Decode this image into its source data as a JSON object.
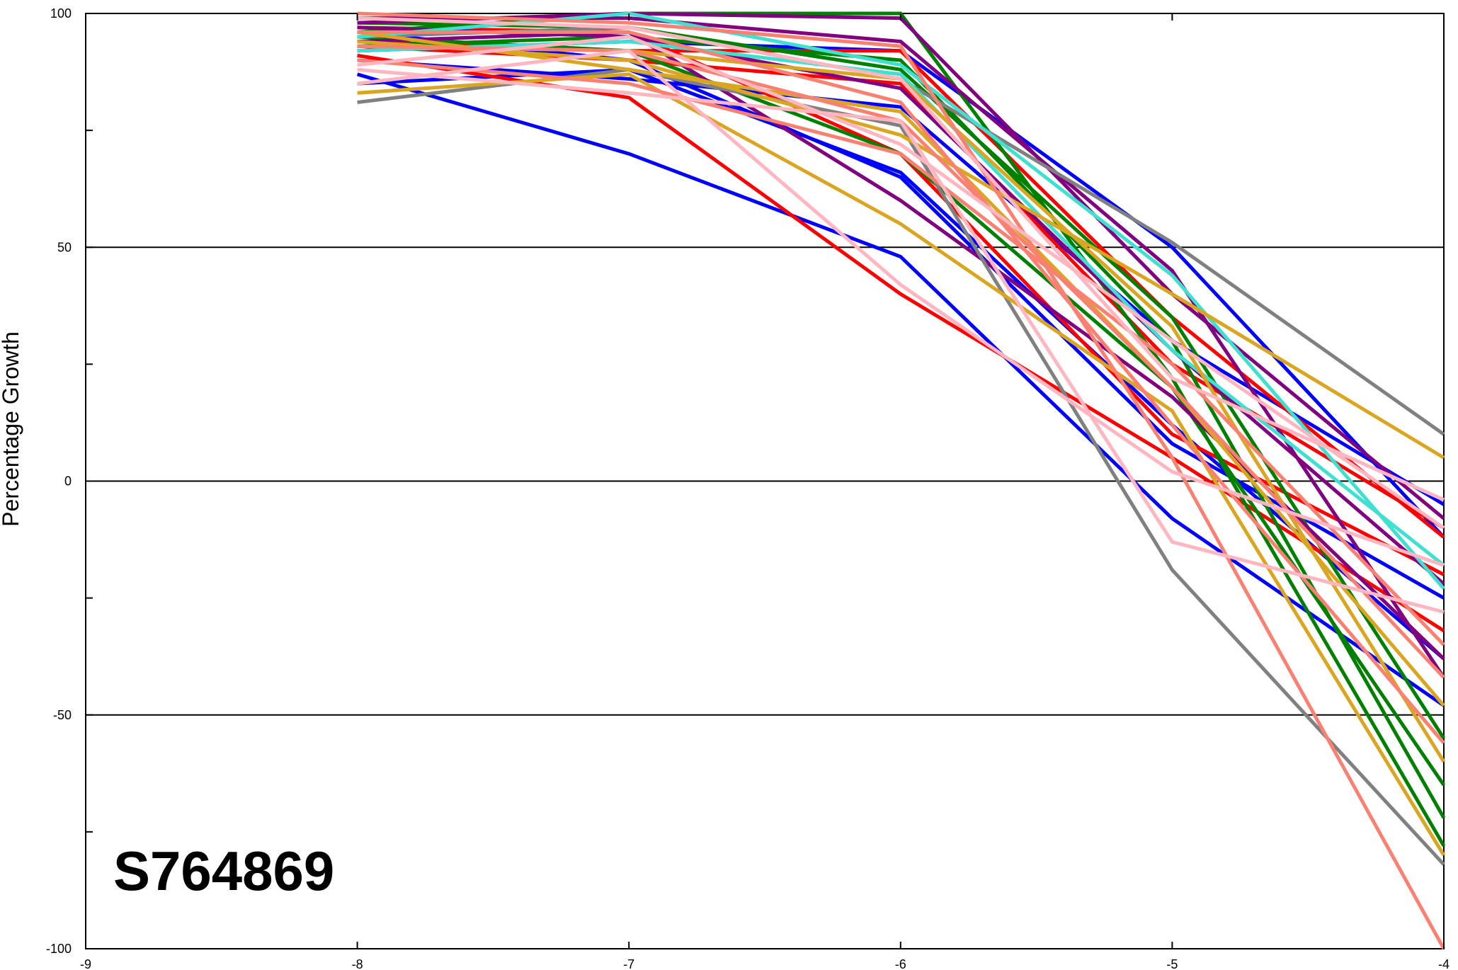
{
  "chart_data": {
    "type": "line",
    "title": "S764869",
    "xlabel": "",
    "ylabel": "Percentage Growth",
    "xlim": [
      -9,
      -4
    ],
    "ylim": [
      -100,
      100
    ],
    "x": [
      -8,
      -7,
      -6,
      -5,
      -4
    ],
    "x_ticks": [
      "-9",
      "-8",
      "-7",
      "-6",
      "-5",
      "-4"
    ],
    "y_ticks": [
      "100",
      "50",
      "0",
      "-50",
      "-100"
    ],
    "grid": "horizontal at 50, 0, -50",
    "legend": "none",
    "series": [
      {
        "color": "#0000ff",
        "values": [
          87,
          70,
          48,
          -8,
          -48
        ]
      },
      {
        "color": "#0000ff",
        "values": [
          85,
          88,
          66,
          12,
          -38
        ]
      },
      {
        "color": "#0000ff",
        "values": [
          92,
          94,
          92,
          50,
          -12
        ]
      },
      {
        "color": "#0000ff",
        "values": [
          96,
          90,
          65,
          8,
          -25
        ]
      },
      {
        "color": "#0000ff",
        "values": [
          90,
          86,
          80,
          30,
          -5
        ]
      },
      {
        "color": "#ff0000",
        "values": [
          91,
          82,
          40,
          5,
          -32
        ]
      },
      {
        "color": "#ff0000",
        "values": [
          94,
          92,
          92,
          35,
          -12
        ]
      },
      {
        "color": "#ff0000",
        "values": [
          97,
          96,
          70,
          10,
          -20
        ]
      },
      {
        "color": "#ff0000",
        "values": [
          93,
          90,
          85,
          25,
          -10
        ]
      },
      {
        "color": "#008000",
        "values": [
          96,
          100,
          100,
          22,
          -78
        ]
      },
      {
        "color": "#008000",
        "values": [
          93,
          95,
          90,
          30,
          -72
        ]
      },
      {
        "color": "#008000",
        "values": [
          95,
          92,
          70,
          20,
          -65
        ]
      },
      {
        "color": "#008000",
        "values": [
          98,
          97,
          88,
          35,
          -55
        ]
      },
      {
        "color": "#800080",
        "values": [
          98,
          100,
          99,
          40,
          -8
        ]
      },
      {
        "color": "#800080",
        "values": [
          97,
          95,
          84,
          28,
          -22
        ]
      },
      {
        "color": "#800080",
        "values": [
          99,
          99,
          94,
          45,
          -42
        ]
      },
      {
        "color": "#800080",
        "values": [
          94,
          96,
          60,
          18,
          -38
        ]
      },
      {
        "color": "#808080",
        "values": [
          81,
          88,
          76,
          -19,
          -82
        ]
      },
      {
        "color": "#808080",
        "values": [
          95,
          97,
          86,
          51,
          10
        ]
      },
      {
        "color": "#40e0d0",
        "values": [
          95,
          100,
          89,
          44,
          -23
        ]
      },
      {
        "color": "#40e0d0",
        "values": [
          92,
          94,
          87,
          28,
          -18
        ]
      },
      {
        "color": "#daa520",
        "values": [
          83,
          87,
          55,
          15,
          -80
        ]
      },
      {
        "color": "#daa520",
        "values": [
          93,
          92,
          86,
          33,
          -60
        ]
      },
      {
        "color": "#daa520",
        "values": [
          94,
          90,
          74,
          40,
          5
        ]
      },
      {
        "color": "#daa520",
        "values": [
          96,
          88,
          79,
          20,
          -48
        ]
      },
      {
        "color": "#fa8072",
        "values": [
          100,
          98,
          93,
          5,
          -100
        ]
      },
      {
        "color": "#fa8072",
        "values": [
          96,
          96,
          81,
          12,
          -56
        ]
      },
      {
        "color": "#fa8072",
        "values": [
          93,
          92,
          77,
          20,
          -42
        ]
      },
      {
        "color": "#fa8072",
        "values": [
          90,
          85,
          70,
          25,
          -35
        ]
      },
      {
        "color": "#ffb6c1",
        "values": [
          88,
          83,
          77,
          -13,
          -28
        ]
      },
      {
        "color": "#ffb6c1",
        "values": [
          85,
          92,
          42,
          2,
          -18
        ]
      },
      {
        "color": "#ffb6c1",
        "values": [
          89,
          95,
          72,
          30,
          -10
        ]
      },
      {
        "color": "#ffb6c1",
        "values": [
          99,
          97,
          86,
          22,
          -4
        ]
      }
    ]
  }
}
